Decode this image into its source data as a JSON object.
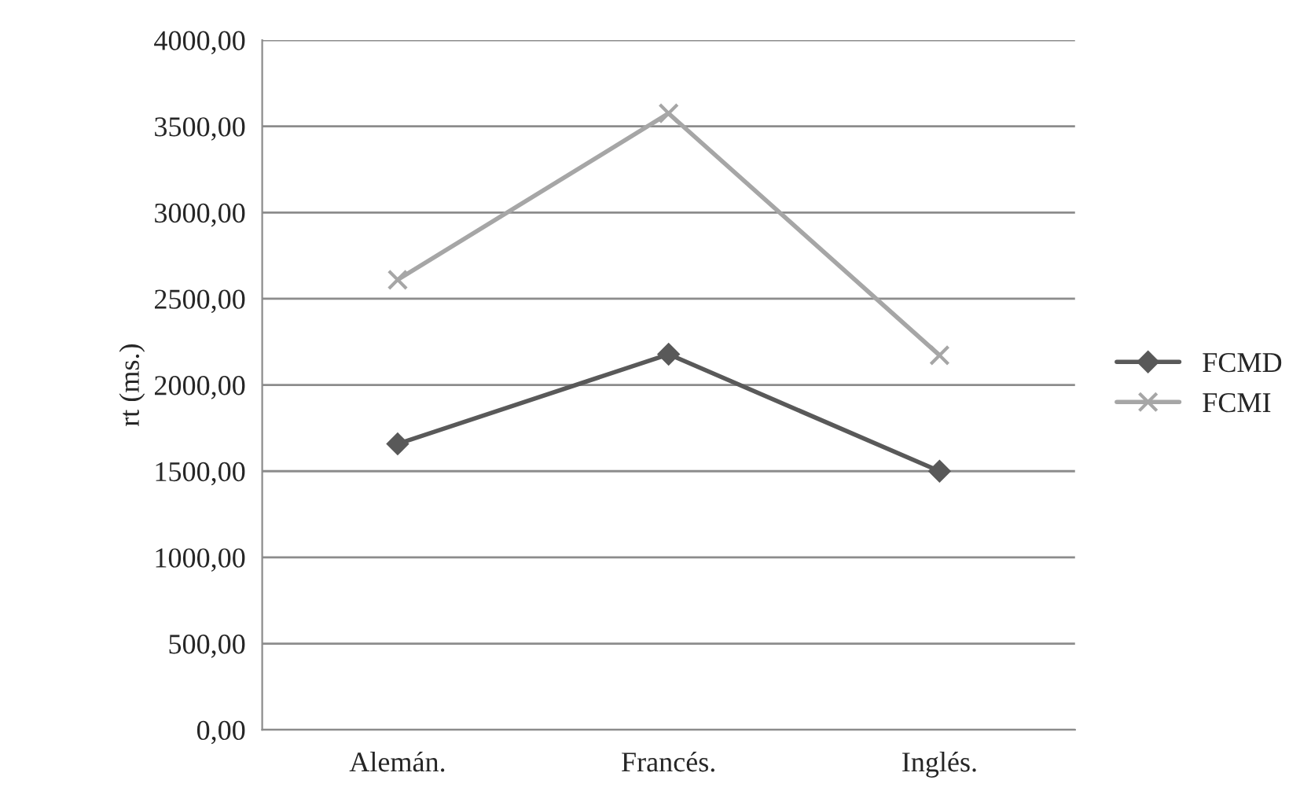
{
  "chart_data": {
    "type": "line",
    "ylabel": "rt (ms.)",
    "categories": [
      "Alemán.",
      "Francés.",
      "Inglés."
    ],
    "series": [
      {
        "name": "FCMD",
        "color": "#595959",
        "marker": "diamond",
        "values": [
          1658,
          2178,
          1500
        ]
      },
      {
        "name": "FCMI",
        "color": "#a6a6a6",
        "marker": "cross",
        "values": [
          2610,
          3575,
          2172
        ]
      }
    ],
    "ylim": [
      0,
      4000
    ],
    "yticks": [
      {
        "value": 0,
        "label": "0,00"
      },
      {
        "value": 500,
        "label": "500,00"
      },
      {
        "value": 1000,
        "label": "1000,00"
      },
      {
        "value": 1500,
        "label": "1500,00"
      },
      {
        "value": 2000,
        "label": "2000,00"
      },
      {
        "value": 2500,
        "label": "2500,00"
      },
      {
        "value": 3000,
        "label": "3000,00"
      },
      {
        "value": 3500,
        "label": "3500,00"
      },
      {
        "value": 4000,
        "label": "4000,00"
      }
    ],
    "grid": "y",
    "legend": "right",
    "line_style": "solid"
  }
}
